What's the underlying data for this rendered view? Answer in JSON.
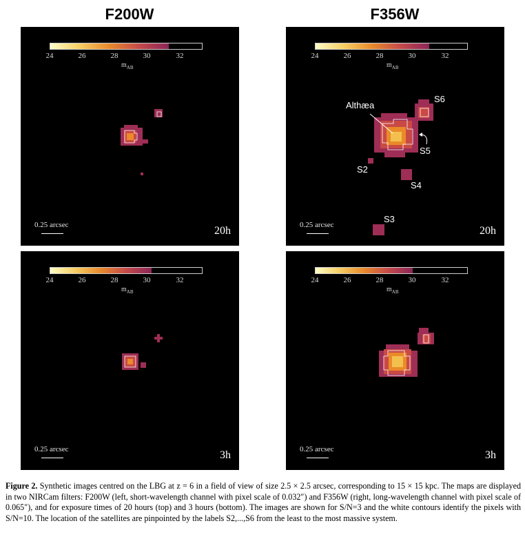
{
  "columns": {
    "left_title": "F200W",
    "right_title": "F356W"
  },
  "colorbar": {
    "ticks": [
      "24",
      "26",
      "28",
      "30",
      "32"
    ],
    "unit": "m",
    "unit_sub": "AB"
  },
  "scalebar_label": "0.25 arcsec",
  "panels": [
    {
      "id": "f200w-20h",
      "exposure": "20h"
    },
    {
      "id": "f356w-20h",
      "exposure": "20h"
    },
    {
      "id": "f200w-3h",
      "exposure": "3h"
    },
    {
      "id": "f356w-3h",
      "exposure": "3h"
    }
  ],
  "galaxy_labels": {
    "main": "Althæa",
    "s2": "S2",
    "s3": "S3",
    "s4": "S4",
    "s5": "S5",
    "s6": "S6"
  },
  "caption": {
    "label": "Figure 2.",
    "text": "Synthetic images centred on the LBG at z = 6 in a field of view of size 2.5 × 2.5 arcsec, corresponding to 15 × 15 kpc. The maps are displayed in two NIRCam filters: F200W (left, short-wavelength channel with pixel scale of 0.032″) and F356W (right, long-wavelength channel with pixel scale of 0.065″), and for exposure times of 20 hours (top) and 3 hours (bottom). The images are shown for S/N=3 and the white contours identify the pixels with S/N=10. The location of the satellites are pinpointed by the labels S2,...,S6 from the least to the most massive system."
  },
  "colors": {
    "bright": "#f7e07a",
    "mid": "#e8882c",
    "dim": "#b0335a",
    "faint": "#8a2448"
  }
}
